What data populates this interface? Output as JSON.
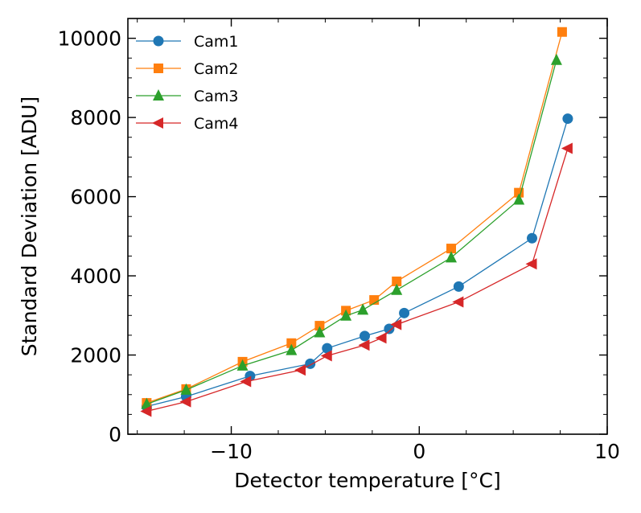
{
  "chart_data": {
    "type": "line",
    "title": "",
    "xlabel": "Detector temperature [°C]",
    "ylabel": "Standard Deviation [ADU]",
    "xlim": [
      -15.5,
      10
    ],
    "ylim": [
      0,
      10500
    ],
    "xticks": [
      -10,
      0,
      10
    ],
    "yticks": [
      0,
      2000,
      4000,
      6000,
      8000,
      10000
    ],
    "xtick_labels": [
      "−10",
      "0",
      "10"
    ],
    "ytick_labels": [
      "0",
      "2000",
      "4000",
      "6000",
      "8000",
      "10000"
    ],
    "grid": false,
    "legend_position": "top-left",
    "series": [
      {
        "name": "Cam1",
        "color": "#1f77b4",
        "marker": "circle",
        "x": [
          -14.5,
          -12.4,
          -9.0,
          -5.8,
          -4.9,
          -2.9,
          -1.6,
          -0.8,
          2.1,
          6.0,
          7.9
        ],
        "y": [
          700,
          950,
          1470,
          1780,
          2170,
          2480,
          2660,
          3060,
          3730,
          4950,
          7970
        ]
      },
      {
        "name": "Cam2",
        "color": "#ff7f0e",
        "marker": "square",
        "x": [
          -14.5,
          -12.4,
          -9.4,
          -6.8,
          -5.3,
          -3.9,
          -2.4,
          -1.2,
          1.7,
          5.3,
          7.6
        ],
        "y": [
          790,
          1140,
          1830,
          2300,
          2740,
          3120,
          3390,
          3860,
          4690,
          6100,
          10160
        ]
      },
      {
        "name": "Cam3",
        "color": "#2ca02c",
        "marker": "triangle-up",
        "x": [
          -14.5,
          -12.4,
          -9.4,
          -6.8,
          -5.3,
          -3.9,
          -3.0,
          -1.2,
          1.7,
          5.3,
          7.3
        ],
        "y": [
          760,
          1120,
          1730,
          2120,
          2570,
          2990,
          3140,
          3640,
          4460,
          5920,
          9450
        ]
      },
      {
        "name": "Cam4",
        "color": "#d62728",
        "marker": "triangle-left",
        "x": [
          -14.5,
          -12.4,
          -9.2,
          -6.3,
          -4.9,
          -2.9,
          -2.0,
          -1.2,
          2.1,
          6.0,
          7.9
        ],
        "y": [
          580,
          820,
          1330,
          1620,
          1980,
          2250,
          2430,
          2770,
          3340,
          4300,
          7220
        ]
      }
    ]
  }
}
